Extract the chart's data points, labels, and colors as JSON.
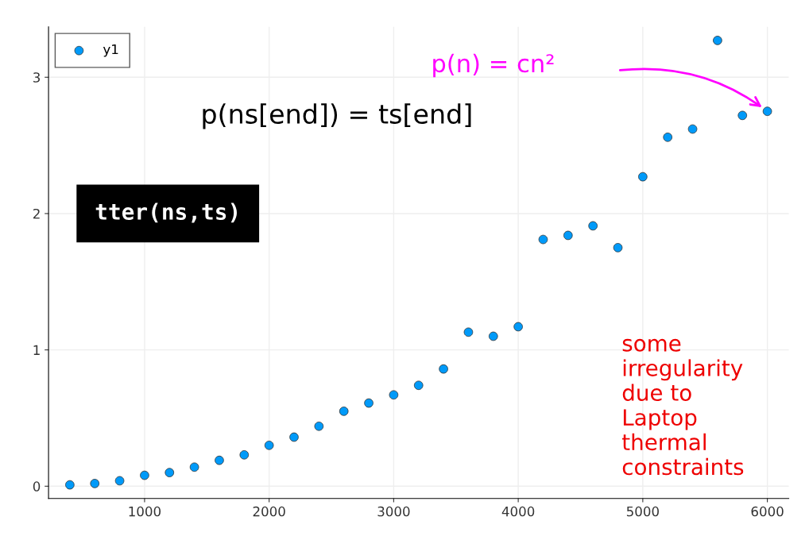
{
  "chart_data": {
    "type": "scatter",
    "x": [
      400,
      600,
      800,
      1000,
      1200,
      1400,
      1600,
      1800,
      2000,
      2200,
      2400,
      2600,
      2800,
      3000,
      3200,
      3400,
      3600,
      3800,
      4000,
      4200,
      4400,
      4600,
      4800,
      5000,
      5200,
      5400,
      5600,
      5800,
      6000
    ],
    "series": [
      {
        "name": "y1",
        "color": "#009af9",
        "values": [
          0.01,
          0.02,
          0.04,
          0.08,
          0.1,
          0.14,
          0.19,
          0.23,
          0.3,
          0.36,
          0.44,
          0.55,
          0.61,
          0.67,
          0.74,
          0.86,
          1.13,
          1.1,
          1.17,
          1.81,
          1.84,
          1.91,
          1.75,
          2.27,
          2.56,
          2.62,
          3.27,
          2.72,
          2.75
        ]
      }
    ],
    "xlim": [
      229,
      6172
    ],
    "ylim": [
      -0.09,
      3.37
    ],
    "xticks": [
      1000,
      2000,
      3000,
      4000,
      5000,
      6000
    ],
    "yticks": [
      0,
      1,
      2,
      3
    ],
    "grid": true,
    "legend": "top left",
    "marker": "circle",
    "annotations": [
      "p(n) = cn²",
      "p(ns[end]) = ts[end]",
      "some\nirregularity\ndue to\nLaptop\nthermal\nconstraints",
      "tter(ns,ts)"
    ]
  }
}
